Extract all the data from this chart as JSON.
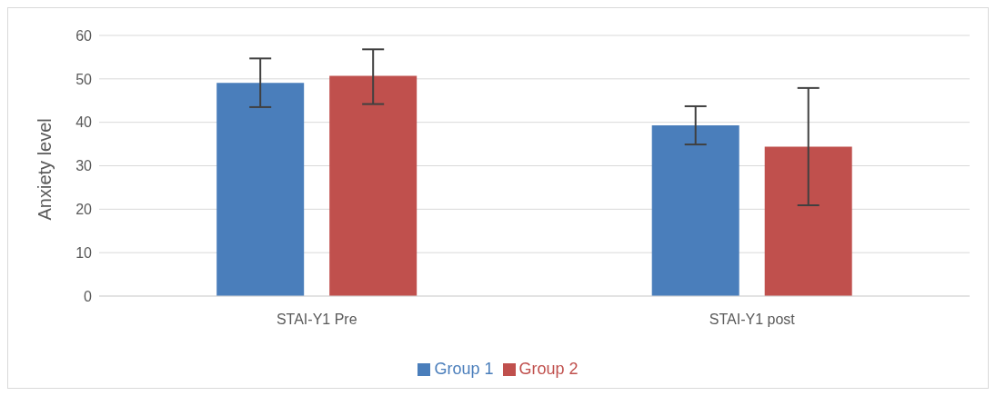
{
  "chart_data": {
    "type": "bar",
    "ylabel": "Anxiety level",
    "categories": [
      "STAI-Y1 Pre",
      "STAI-Y1 post"
    ],
    "series": [
      {
        "name": "Group 1",
        "color": "#4a7ebb",
        "values": [
          49.1,
          39.3
        ],
        "errors": [
          [
            43.5,
            54.7
          ],
          [
            34.9,
            43.7
          ]
        ]
      },
      {
        "name": "Group 2",
        "color": "#c0504d",
        "values": [
          50.7,
          34.4
        ],
        "errors": [
          [
            44.2,
            56.8
          ],
          [
            20.9,
            47.9
          ]
        ]
      }
    ],
    "ylim": [
      0,
      60
    ],
    "yticks": [
      0,
      10,
      20,
      30,
      40,
      50,
      60
    ],
    "grid": "y",
    "legend": "bottom"
  }
}
